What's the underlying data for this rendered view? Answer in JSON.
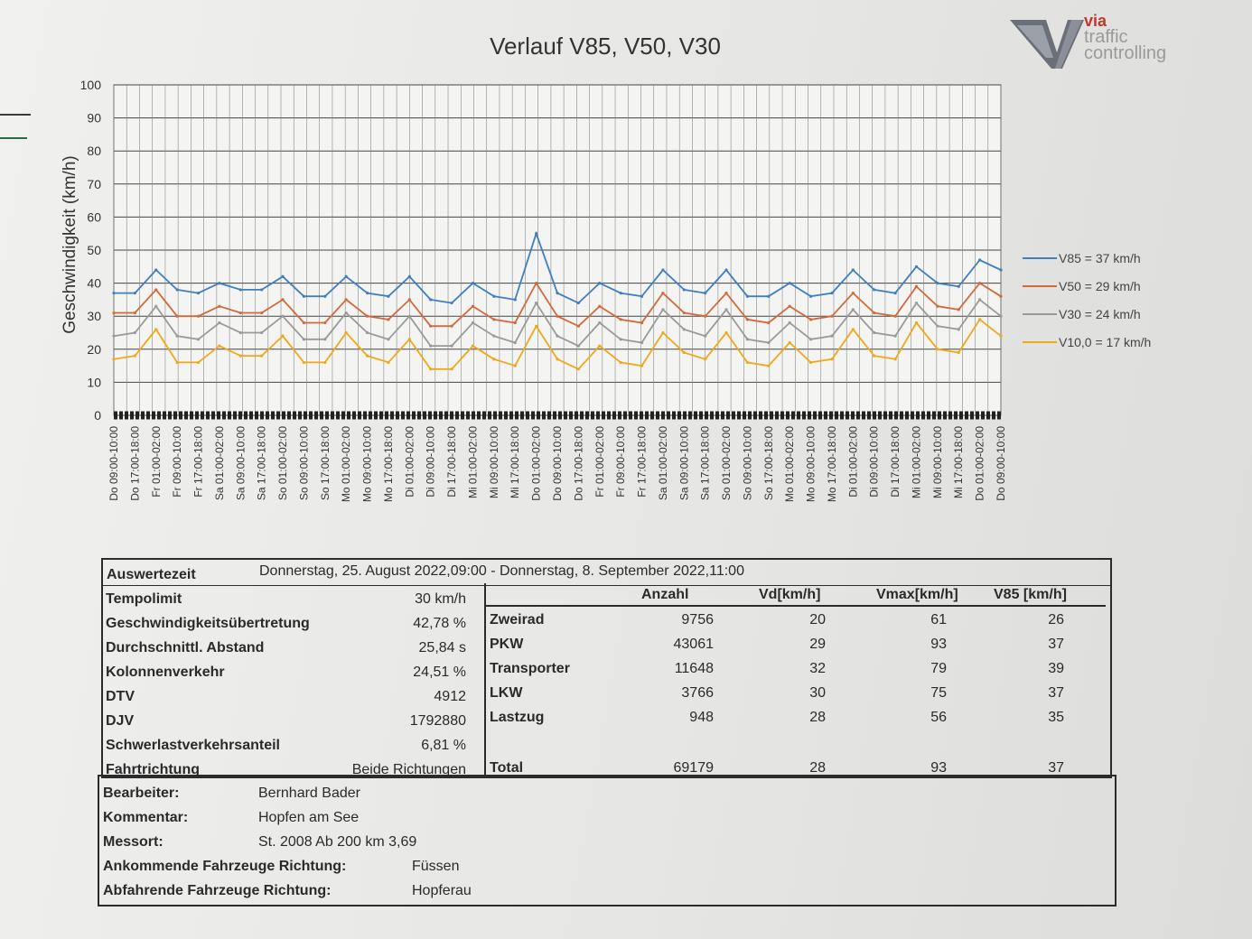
{
  "chart": {
    "title": "Verlauf  V85, V50, V30",
    "ylabel": "Geschwindigkeit (km/h)",
    "yticks": [
      "100",
      "90",
      "80",
      "70",
      "60",
      "50",
      "40",
      "30",
      "20",
      "10",
      "0"
    ],
    "xticks": [
      "Do 09:00-10:00",
      "Do 17:00-18:00",
      "Fr 01:00-02:00",
      "Fr 09:00-10:00",
      "Fr 17:00-18:00",
      "Sa 01:00-02:00",
      "Sa 09:00-10:00",
      "Sa 17:00-18:00",
      "So 01:00-02:00",
      "So 09:00-10:00",
      "So 17:00-18:00",
      "Mo 01:00-02:00",
      "Mo 09:00-10:00",
      "Mo 17:00-18:00",
      "Di 01:00-02:00",
      "Di 09:00-10:00",
      "Di 17:00-18:00",
      "Mi 01:00-02:00",
      "Mi 09:00-10:00",
      "Mi 17:00-18:00",
      "Do 01:00-02:00",
      "Do 09:00-10:00",
      "Do 17:00-18:00",
      "Fr 01:00-02:00",
      "Fr 09:00-10:00",
      "Fr 17:00-18:00",
      "Sa 01:00-02:00",
      "Sa 09:00-10:00",
      "Sa 17:00-18:00",
      "So 01:00-02:00",
      "So 09:00-10:00",
      "So 17:00-18:00",
      "Mo 01:00-02:00",
      "Mo 09:00-10:00",
      "Mo 17:00-18:00",
      "Di 01:00-02:00",
      "Di 09:00-10:00",
      "Di 17:00-18:00",
      "Mi 01:00-02:00",
      "Mi 09:00-10:00",
      "Mi 17:00-18:00",
      "Do 01:00-02:00",
      "Do 09:00-10:00"
    ],
    "legend": [
      {
        "label": "V85 = 37 km/h",
        "color": "#3f7fc0"
      },
      {
        "label": "V50 = 29 km/h",
        "color": "#d2693a"
      },
      {
        "label": "V30 = 24 km/h",
        "color": "#9a9a9a"
      },
      {
        "label": "V10,0 = 17 km/h",
        "color": "#f0a818"
      }
    ]
  },
  "chart_data": {
    "type": "line",
    "ylim": [
      0,
      100
    ],
    "x": [
      "Do 09:00-10:00",
      "Do 17:00-18:00",
      "Fr 01:00-02:00",
      "Fr 09:00-10:00",
      "Fr 17:00-18:00",
      "Sa 01:00-02:00",
      "Sa 09:00-10:00",
      "Sa 17:00-18:00",
      "So 01:00-02:00",
      "So 09:00-10:00",
      "So 17:00-18:00",
      "Mo 01:00-02:00",
      "Mo 09:00-10:00",
      "Mo 17:00-18:00",
      "Di 01:00-02:00",
      "Di 09:00-10:00",
      "Di 17:00-18:00",
      "Mi 01:00-02:00",
      "Mi 09:00-10:00",
      "Mi 17:00-18:00",
      "Do 01:00-02:00",
      "Do 09:00-10:00",
      "Do 17:00-18:00",
      "Fr 01:00-02:00",
      "Fr 09:00-10:00",
      "Fr 17:00-18:00",
      "Sa 01:00-02:00",
      "Sa 09:00-10:00",
      "Sa 17:00-18:00",
      "So 01:00-02:00",
      "So 09:00-10:00",
      "So 17:00-18:00",
      "Mo 01:00-02:00",
      "Mo 09:00-10:00",
      "Mo 17:00-18:00",
      "Di 01:00-02:00",
      "Di 09:00-10:00",
      "Di 17:00-18:00",
      "Mi 01:00-02:00",
      "Mi 09:00-10:00",
      "Mi 17:00-18:00",
      "Do 01:00-02:00",
      "Do 09:00-10:00"
    ],
    "series": [
      {
        "name": "V85 = 37 km/h",
        "values": [
          37,
          37,
          44,
          38,
          37,
          40,
          38,
          38,
          42,
          36,
          36,
          42,
          37,
          36,
          42,
          35,
          34,
          40,
          36,
          35,
          55,
          37,
          34,
          40,
          37,
          36,
          44,
          38,
          37,
          44,
          36,
          36,
          40,
          36,
          37,
          44,
          38,
          37,
          45,
          40,
          39,
          47,
          44
        ]
      },
      {
        "name": "V50 = 29 km/h",
        "values": [
          31,
          31,
          38,
          30,
          30,
          33,
          31,
          31,
          35,
          28,
          28,
          35,
          30,
          29,
          35,
          27,
          27,
          33,
          29,
          28,
          40,
          30,
          27,
          33,
          29,
          28,
          37,
          31,
          30,
          37,
          29,
          28,
          33,
          29,
          30,
          37,
          31,
          30,
          39,
          33,
          32,
          40,
          36
        ]
      },
      {
        "name": "V30 = 24 km/h",
        "values": [
          24,
          25,
          33,
          24,
          23,
          28,
          25,
          25,
          30,
          23,
          23,
          31,
          25,
          23,
          30,
          21,
          21,
          28,
          24,
          22,
          34,
          24,
          21,
          28,
          23,
          22,
          32,
          26,
          24,
          32,
          23,
          22,
          28,
          23,
          24,
          32,
          25,
          24,
          34,
          27,
          26,
          35,
          30
        ]
      },
      {
        "name": "V10,0 = 17 km/h",
        "values": [
          17,
          18,
          26,
          16,
          16,
          21,
          18,
          18,
          24,
          16,
          16,
          25,
          18,
          16,
          23,
          14,
          14,
          21,
          17,
          15,
          27,
          17,
          14,
          21,
          16,
          15,
          25,
          19,
          17,
          25,
          16,
          15,
          22,
          16,
          17,
          26,
          18,
          17,
          28,
          20,
          19,
          29,
          24
        ]
      }
    ]
  },
  "report": {
    "auswertezeit_label": "Auswertezeit",
    "auswertezeit_value": "Donnerstag, 25. August 2022,09:00  -  Donnerstag, 8. September 2022,11:00",
    "left_rows": [
      {
        "label": "Tempolimit",
        "value": "30 km/h"
      },
      {
        "label": "Geschwindigkeitsübertretung",
        "value": "42,78 %"
      },
      {
        "label": "Durchschnittl. Abstand",
        "value": "25,84 s"
      },
      {
        "label": "Kolonnenverkehr",
        "value": "24,51 %"
      },
      {
        "label": "DTV",
        "value": "4912"
      },
      {
        "label": "DJV",
        "value": "1792880"
      },
      {
        "label": "Schwerlastverkehrsanteil",
        "value": "6,81 %"
      },
      {
        "label": "Fahrtrichtung",
        "value": "Beide Richtungen"
      }
    ],
    "vehicle_headers": [
      "Anzahl",
      "Vd[km/h]",
      "Vmax[km/h]",
      "V85 [km/h]"
    ],
    "vehicle_rows": [
      {
        "type": "Zweirad",
        "anzahl": "9756",
        "vd": "20",
        "vmax": "61",
        "v85": "26"
      },
      {
        "type": "PKW",
        "anzahl": "43061",
        "vd": "29",
        "vmax": "93",
        "v85": "37"
      },
      {
        "type": "Transporter",
        "anzahl": "11648",
        "vd": "32",
        "vmax": "79",
        "v85": "39"
      },
      {
        "type": "LKW",
        "anzahl": "3766",
        "vd": "30",
        "vmax": "75",
        "v85": "37"
      },
      {
        "type": "Lastzug",
        "anzahl": "948",
        "vd": "28",
        "vmax": "56",
        "v85": "35"
      }
    ],
    "total": {
      "type": "Total",
      "anzahl": "69179",
      "vd": "28",
      "vmax": "93",
      "v85": "37"
    },
    "meta": [
      {
        "label": "Bearbeiter:",
        "value": "Bernhard Bader"
      },
      {
        "label": "Kommentar:",
        "value": "Hopfen am See"
      },
      {
        "label": "Messort:",
        "value": "St. 2008 Ab 200 km 3,69"
      },
      {
        "label": "Ankommende Fahrzeuge Richtung:",
        "value": "Füssen"
      },
      {
        "label": "Abfahrende Fahrzeuge Richtung:",
        "value": "Hopferau"
      }
    ]
  },
  "logo": {
    "line1": "via",
    "line2": "traffic",
    "line3": "controlling"
  }
}
